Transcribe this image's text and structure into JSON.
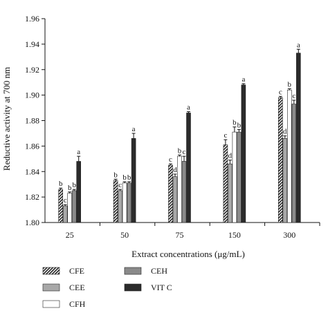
{
  "chart_data": {
    "type": "bar",
    "categories": [
      "25",
      "50",
      "75",
      "150",
      "300"
    ],
    "xlabel": "Extract concentrations (μg/mL)",
    "ylabel": "Reductive activity at 700 nm",
    "ylim": [
      1.8,
      1.96
    ],
    "yticks": [
      "1.80",
      "1.82",
      "1.84",
      "1.86",
      "1.88",
      "1.90",
      "1.92",
      "1.94",
      "1.96"
    ],
    "grid": false,
    "legend_position": "bottom",
    "series": [
      {
        "name": "CFE",
        "values": [
          1.826,
          1.833,
          1.845,
          1.861,
          1.898
        ],
        "errors": [
          0.001,
          0.001,
          0.001,
          0.004,
          0.001
        ],
        "labels": [
          "b",
          "b",
          "c",
          "c",
          "c"
        ],
        "fill": "hatch",
        "color": "#5a5a5a"
      },
      {
        "name": "CEE",
        "values": [
          1.813,
          1.825,
          1.836,
          1.846,
          1.866
        ],
        "errors": [
          0.001,
          0.001,
          0.002,
          0.003,
          0.002
        ],
        "labels": [
          "c",
          "c",
          "d",
          "d",
          "d"
        ],
        "fill": "gray",
        "color": "#a8a8a8"
      },
      {
        "name": "CFH",
        "values": [
          1.823,
          1.831,
          1.852,
          1.871,
          1.904
        ],
        "errors": [
          0.001,
          0.001,
          0.001,
          0.004,
          0.001
        ],
        "labels": [
          "b",
          "b",
          "b",
          "b",
          "b"
        ],
        "fill": "white",
        "color": "#ffffff"
      },
      {
        "name": "CEH",
        "values": [
          1.825,
          1.831,
          1.848,
          1.871,
          1.893
        ],
        "errors": [
          0.001,
          0.001,
          0.004,
          0.002,
          0.003
        ],
        "labels": [
          "b",
          "b",
          "c",
          "b",
          "c"
        ],
        "fill": "dots",
        "color": "#8c8c8c"
      },
      {
        "name": "VIT C",
        "values": [
          1.848,
          1.866,
          1.886,
          1.908,
          1.933
        ],
        "errors": [
          0.004,
          0.004,
          0.001,
          0.001,
          0.003
        ],
        "labels": [
          "a",
          "a",
          "a",
          "a",
          "a"
        ],
        "fill": "dark",
        "color": "#2b2b2b"
      }
    ]
  }
}
